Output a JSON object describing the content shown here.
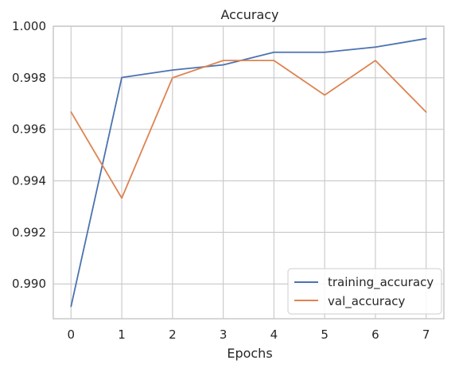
{
  "chart_data": {
    "type": "line",
    "title": "Accuracy",
    "xlabel": "Epochs",
    "ylabel": "",
    "x": [
      0,
      1,
      2,
      3,
      4,
      5,
      6,
      7
    ],
    "xticks": [
      "0",
      "1",
      "2",
      "3",
      "4",
      "5",
      "6",
      "7"
    ],
    "xlim": [
      -0.35,
      7.35
    ],
    "ylim": [
      0.98865,
      1.0
    ],
    "yticks": [
      "0.990",
      "0.992",
      "0.994",
      "0.996",
      "0.998",
      "1.000"
    ],
    "yticks_values": [
      0.99,
      0.992,
      0.994,
      0.996,
      0.998,
      1.0
    ],
    "grid": true,
    "legend_position": "lower-right",
    "series": [
      {
        "name": "training_accuracy",
        "color": "#4c72b0",
        "values": [
          0.98913,
          0.99801,
          0.9983,
          0.9985,
          0.99899,
          0.99899,
          0.99919,
          0.99952
        ]
      },
      {
        "name": "val_accuracy",
        "color": "#dd8452",
        "values": [
          0.99667,
          0.99333,
          0.998,
          0.99867,
          0.99867,
          0.99733,
          0.99867,
          0.99667
        ]
      }
    ]
  }
}
